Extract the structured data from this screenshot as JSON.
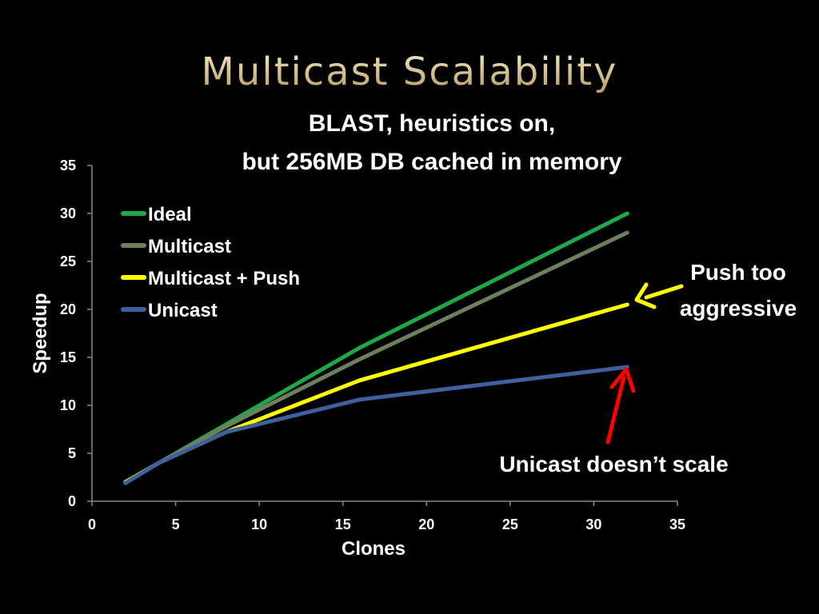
{
  "slide": {
    "title": "Multicast Scalability",
    "subtitle_line1": "BLAST, heuristics on,",
    "subtitle_line2": "but 256MB DB cached in memory",
    "annotation_push_line1": "Push too",
    "annotation_push_line2": "aggressive",
    "annotation_unicast": "Unicast doesn’t scale",
    "annotation_arrow_colors": {
      "push": "#ffff00",
      "unicast": "#ff0000"
    }
  },
  "chart_data": {
    "type": "line",
    "title": "",
    "xlabel": "Clones",
    "ylabel": "Speedup",
    "xlim": [
      0,
      35
    ],
    "ylim": [
      0,
      35
    ],
    "x_ticks": [
      0,
      5,
      10,
      15,
      20,
      25,
      30,
      35
    ],
    "y_ticks": [
      0,
      5,
      10,
      15,
      20,
      25,
      30,
      35
    ],
    "grid": false,
    "legend_position": "top-left",
    "series": [
      {
        "name": "Ideal",
        "color": "#1fa84a",
        "x": [
          2,
          4,
          8,
          16,
          32
        ],
        "y": [
          2,
          4,
          8,
          16,
          30
        ]
      },
      {
        "name": "Multicast",
        "color": "#6e7f5e",
        "x": [
          2,
          4,
          8,
          16,
          32
        ],
        "y": [
          2,
          4,
          7.8,
          14.8,
          28
        ]
      },
      {
        "name": "Multicast + Push",
        "color": "#ffff00",
        "x": [
          2,
          4,
          8,
          16,
          32
        ],
        "y": [
          2,
          4,
          7.2,
          12.6,
          20.5
        ]
      },
      {
        "name": "Unicast",
        "color": "#3f5f9f",
        "x": [
          2,
          4,
          8,
          16,
          32
        ],
        "y": [
          1.9,
          4,
          7.2,
          10.6,
          14
        ]
      }
    ]
  }
}
